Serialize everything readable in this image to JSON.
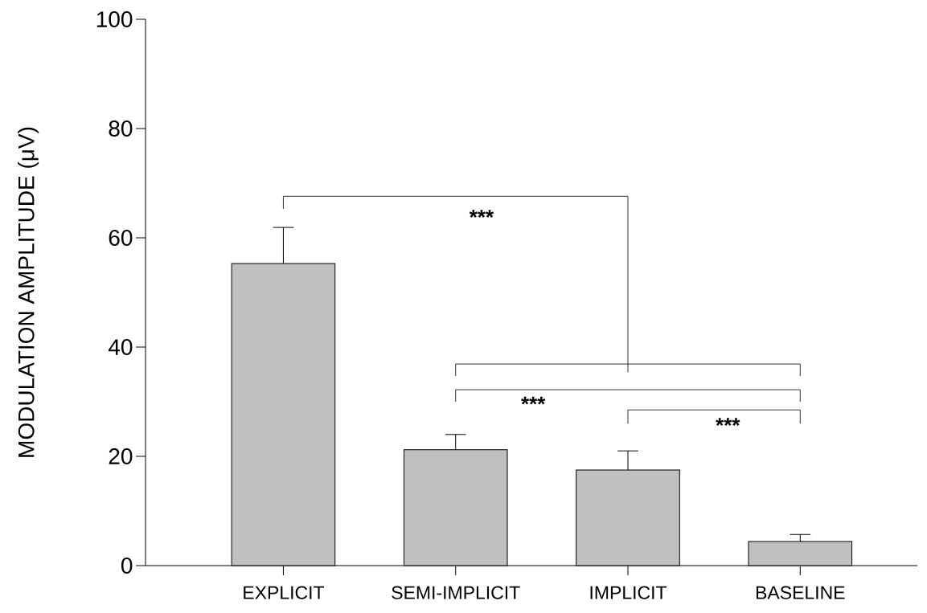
{
  "chart_data": {
    "type": "bar",
    "ylabel": "MODULATION AMPLITUDE (μV)",
    "categories": [
      "EXPLICIT",
      "SEMI-IMPLICIT",
      "IMPLICIT",
      "BASELINE"
    ],
    "values": [
      55.3,
      21.2,
      17.5,
      4.4
    ],
    "errors": [
      [
        55.3,
        61.9
      ],
      [
        21.2,
        24.0
      ],
      [
        17.5,
        21.0
      ],
      [
        4.4,
        5.7
      ]
    ],
    "color": "#c0c0c0",
    "ylim": [
      0,
      100
    ],
    "yticks": [
      0,
      20,
      40,
      60,
      80,
      100
    ],
    "annotations": [
      "***",
      "***",
      "***"
    ]
  }
}
